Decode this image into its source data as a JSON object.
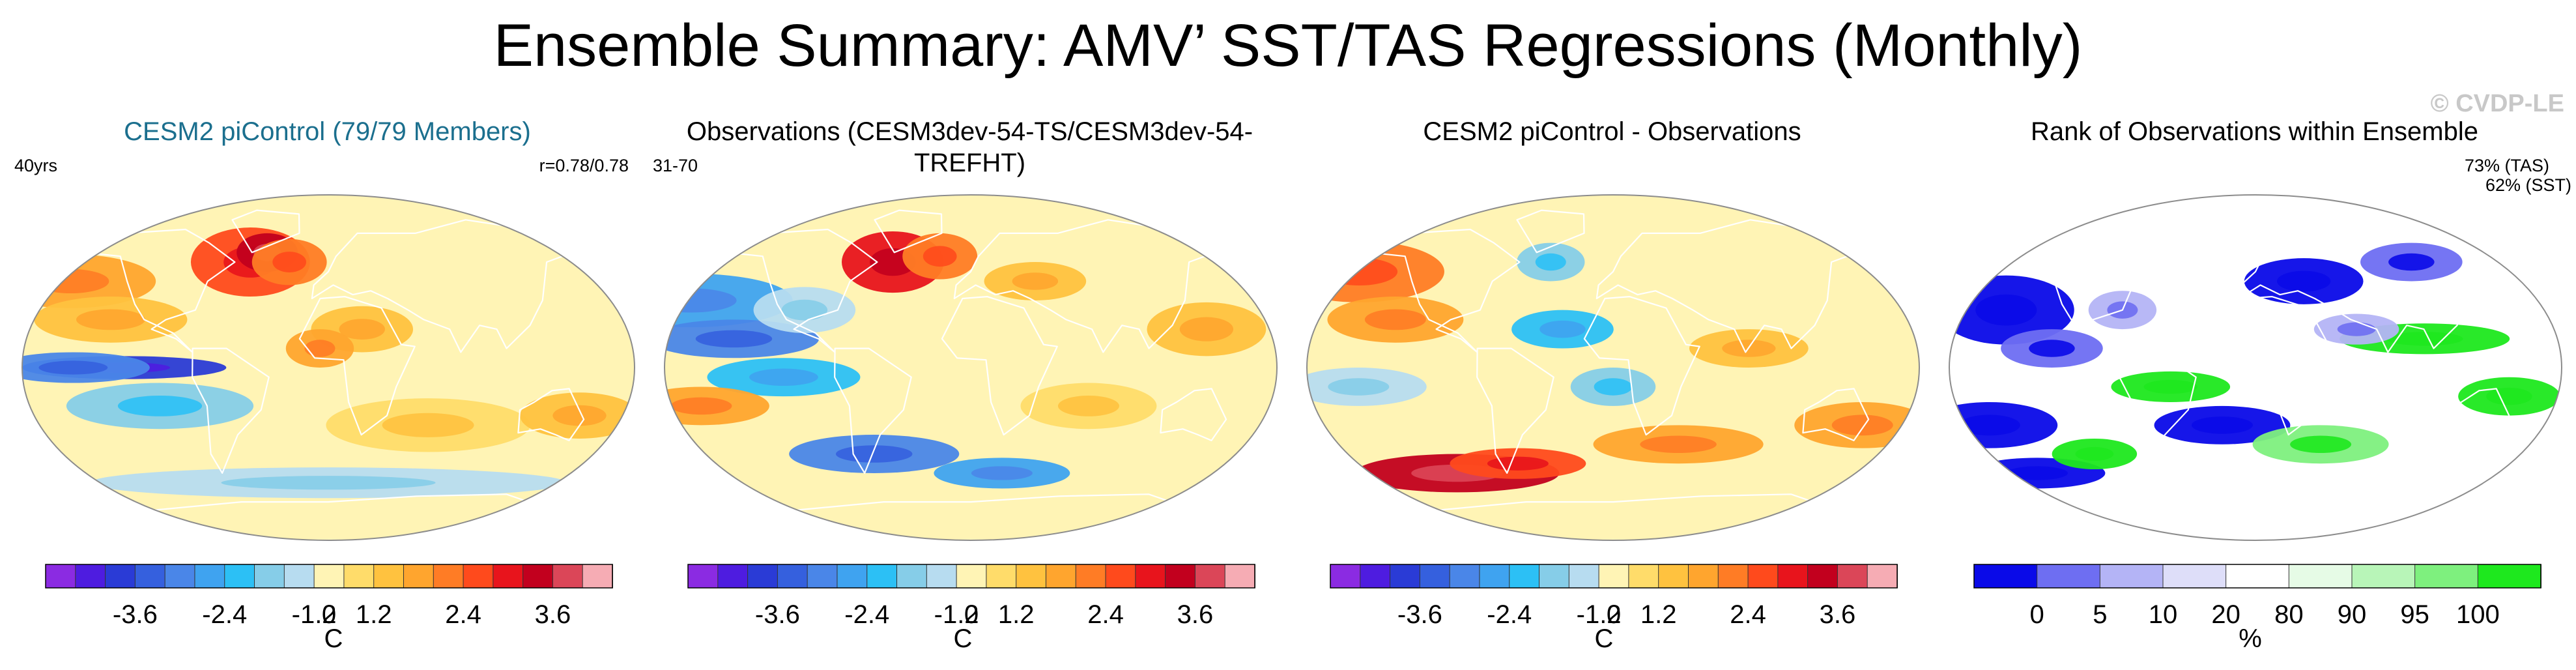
{
  "title": "Ensemble Summary: AMV’ SST/TAS Regressions (Monthly)",
  "watermark": "© CVDP-LE",
  "chart_data": [
    {
      "type": "heatmap",
      "title": "CESM2 piControl (79/79 Members)",
      "left_text": "40yrs",
      "right_text": "r=0.78/0.78",
      "projection": "Robinson global map",
      "colorbar": {
        "unit": "C",
        "tick_labels": [
          "-3.6",
          "-2.4",
          "-1.2",
          "0",
          "1.2",
          "2.4",
          "3.6"
        ],
        "colors": [
          "#8b2be2",
          "#4e1ce0",
          "#2a3bd6",
          "#3560de",
          "#4a86e8",
          "#3fa3f0",
          "#2cc0f5",
          "#86cde8",
          "#b7dcf0",
          "#fff4b5",
          "#ffdc6a",
          "#ffc23f",
          "#ffa52e",
          "#ff7c25",
          "#ff4a1c",
          "#e8141c",
          "#c2001e",
          "#db4658",
          "#f6acb4"
        ]
      },
      "pattern": {
        "north_atlantic": "strong warm (up to ~3.6 C)",
        "north_pacific": "warm",
        "eastern_equatorial_pacific": "cool (~-2.4 C)",
        "southern_ocean": "weakly cool"
      }
    },
    {
      "type": "heatmap",
      "title": "Observations (CESM3dev-54-TS/CESM3dev-54-TREFHT)",
      "left_text": "31-70",
      "right_text": "",
      "projection": "Robinson global map",
      "colorbar": {
        "unit": "C",
        "tick_labels": [
          "-3.6",
          "-2.4",
          "-1.2",
          "0",
          "1.2",
          "2.4",
          "3.6"
        ],
        "colors": [
          "#8b2be2",
          "#4e1ce0",
          "#2a3bd6",
          "#3560de",
          "#4a86e8",
          "#3fa3f0",
          "#2cc0f5",
          "#86cde8",
          "#b7dcf0",
          "#fff4b5",
          "#ffdc6a",
          "#ffc23f",
          "#ffa52e",
          "#ff7c25",
          "#ff4a1c",
          "#e8141c",
          "#c2001e",
          "#db4658",
          "#f6acb4"
        ]
      },
      "pattern": {
        "north_atlantic": "strong warm",
        "north_pacific": "cool",
        "tropical_pacific": "cool",
        "southern_ocean": "mixed"
      }
    },
    {
      "type": "heatmap",
      "title": "CESM2 piControl - Observations",
      "left_text": "",
      "right_text": "",
      "projection": "Robinson global map",
      "colorbar": {
        "unit": "C",
        "tick_labels": [
          "-3.6",
          "-2.4",
          "-1.2",
          "0",
          "1.2",
          "2.4",
          "3.6"
        ],
        "colors": [
          "#8b2be2",
          "#4e1ce0",
          "#2a3bd6",
          "#3560de",
          "#4a86e8",
          "#3fa3f0",
          "#2cc0f5",
          "#86cde8",
          "#b7dcf0",
          "#fff4b5",
          "#ffdc6a",
          "#ffc23f",
          "#ffa52e",
          "#ff7c25",
          "#ff4a1c",
          "#e8141c",
          "#c2001e",
          "#db4658",
          "#f6acb4"
        ]
      },
      "pattern": {
        "north_pacific": "warm",
        "southern_ocean": "warm",
        "north_atlantic": "weak"
      }
    },
    {
      "type": "heatmap",
      "title": "Rank of Observations within Ensemble",
      "left_text": "",
      "right_text": "73% (TAS)",
      "right_text2": "62% (SST)",
      "projection": "Robinson global map",
      "colorbar": {
        "unit": "%",
        "tick_labels": [
          "0",
          "5",
          "10",
          "20",
          "80",
          "90",
          "95",
          "100"
        ],
        "colors": [
          "#0a0ae8",
          "#6e6ef2",
          "#b4b4f6",
          "#dedef9",
          "#ffffff",
          "#e6fbe6",
          "#b8f5b8",
          "#7ef07e",
          "#1ee81e"
        ]
      },
      "pattern": {
        "north_pacific": "low rank (blue)",
        "tropical_indian_pacific": "high rank (green)",
        "southern_ocean": "mixed"
      }
    }
  ]
}
